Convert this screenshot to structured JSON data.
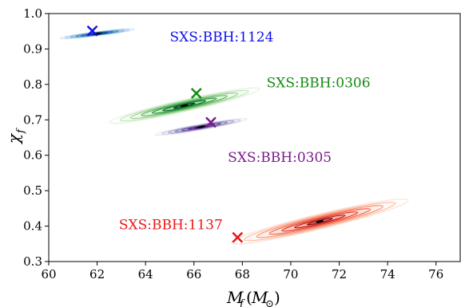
{
  "chart_data": {
    "type": "scatter",
    "title": "",
    "xlabel": "M_f(M_⊙)",
    "ylabel": "χ_f",
    "xlim": [
      60,
      77
    ],
    "ylim": [
      0.3,
      1.0
    ],
    "xticks": [
      60,
      62,
      64,
      66,
      68,
      70,
      72,
      74,
      76
    ],
    "yticks": [
      0.3,
      0.4,
      0.5,
      0.6,
      0.7,
      0.8,
      0.9,
      1.0
    ],
    "xtick_labels": [
      "60",
      "62",
      "64",
      "66",
      "68",
      "70",
      "72",
      "74",
      "76"
    ],
    "ytick_labels": [
      "0.3",
      "0.4",
      "0.5",
      "0.6",
      "0.7",
      "0.8",
      "0.9",
      "1.0"
    ],
    "grid": false,
    "series": [
      {
        "name": "SXS:BBH:1124",
        "color": "#1010ee",
        "colormap": "blues",
        "true_value": {
          "x": 61.8,
          "y": 0.951
        },
        "posterior_peak": {
          "x": 62.0,
          "y": 0.943
        },
        "posterior_extent": {
          "x": [
            60.9,
            64.0
          ],
          "y": [
            0.93,
            0.956
          ]
        }
      },
      {
        "name": "SXS:BBH:0306",
        "color": "#138a13",
        "colormap": "greens",
        "true_value": {
          "x": 66.1,
          "y": 0.775
        },
        "posterior_peak": {
          "x": 65.6,
          "y": 0.74
        },
        "posterior_extent": {
          "x": [
            62.4,
            68.6
          ],
          "y": [
            0.695,
            0.79
          ]
        }
      },
      {
        "name": "SXS:BBH:0305",
        "color": "#7a1a8a",
        "colormap": "purples",
        "true_value": {
          "x": 66.7,
          "y": 0.693
        },
        "posterior_peak": {
          "x": 66.3,
          "y": 0.68
        },
        "posterior_extent": {
          "x": [
            64.7,
            68.5
          ],
          "y": [
            0.66,
            0.705
          ]
        }
      },
      {
        "name": "SXS:BBH:1137",
        "color": "#ee1515",
        "colormap": "reds",
        "true_value": {
          "x": 67.8,
          "y": 0.368
        },
        "posterior_peak": {
          "x": 71.2,
          "y": 0.413
        },
        "posterior_extent": {
          "x": [
            68.2,
            75.5
          ],
          "y": [
            0.355,
            0.475
          ]
        }
      }
    ]
  }
}
